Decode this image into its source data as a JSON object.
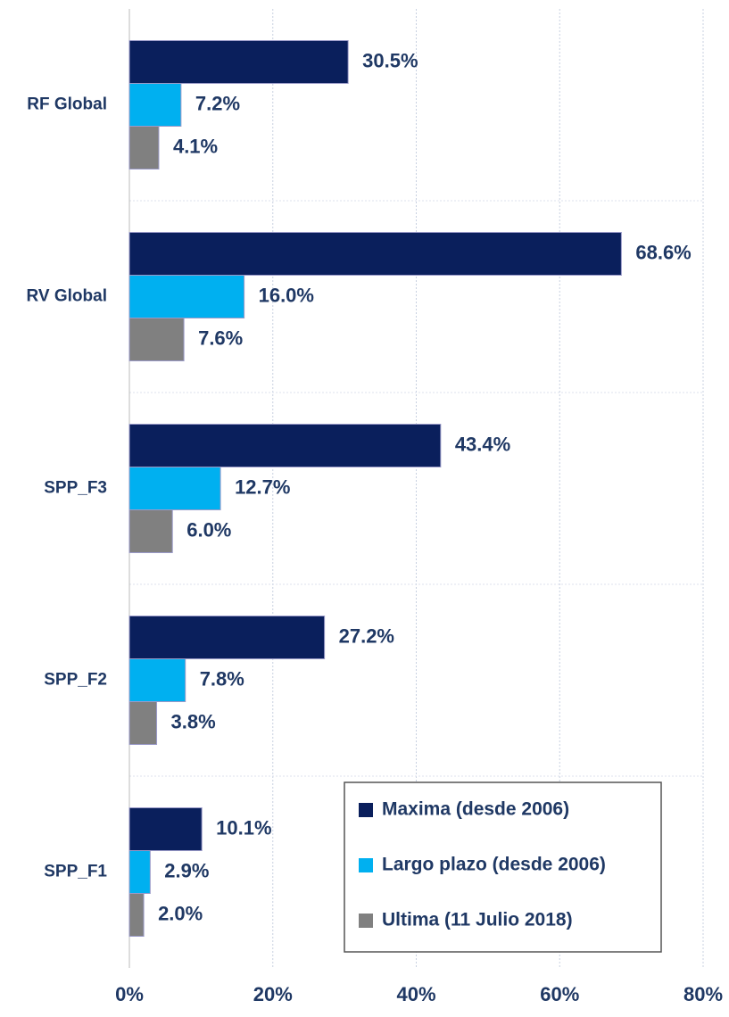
{
  "chart_data": {
    "type": "barh",
    "categories": [
      "RF Global",
      "RV Global",
      "SPP_F3",
      "SPP_F2",
      "SPP_F1"
    ],
    "series": [
      {
        "name": "Maxima (desde 2006)",
        "color": "#0a1f5c",
        "values": [
          30.5,
          68.6,
          43.4,
          27.2,
          10.1
        ],
        "value_labels": [
          "30.5%",
          "68.6%",
          "43.4%",
          "27.2%",
          "10.1%"
        ]
      },
      {
        "name": "Largo plazo (desde 2006)",
        "color": "#00b0f0",
        "values": [
          7.2,
          16.0,
          12.7,
          7.8,
          2.9
        ],
        "value_labels": [
          "7.2%",
          "16.0%",
          "12.7%",
          "7.8%",
          "2.9%"
        ]
      },
      {
        "name": "Ultima (11 Julio 2018)",
        "color": "#808080",
        "values": [
          4.1,
          7.6,
          6.0,
          3.8,
          2.0
        ],
        "value_labels": [
          "4.1%",
          "7.6%",
          "6.0%",
          "3.8%",
          "2.0%"
        ]
      }
    ],
    "xlim": [
      0,
      80
    ],
    "xticks": [
      {
        "value": 0,
        "label": "0%"
      },
      {
        "value": 20,
        "label": "20%"
      },
      {
        "value": 40,
        "label": "40%"
      },
      {
        "value": 60,
        "label": "60%"
      },
      {
        "value": 80,
        "label": "80%"
      }
    ],
    "grid": true,
    "legend": "lower right"
  }
}
